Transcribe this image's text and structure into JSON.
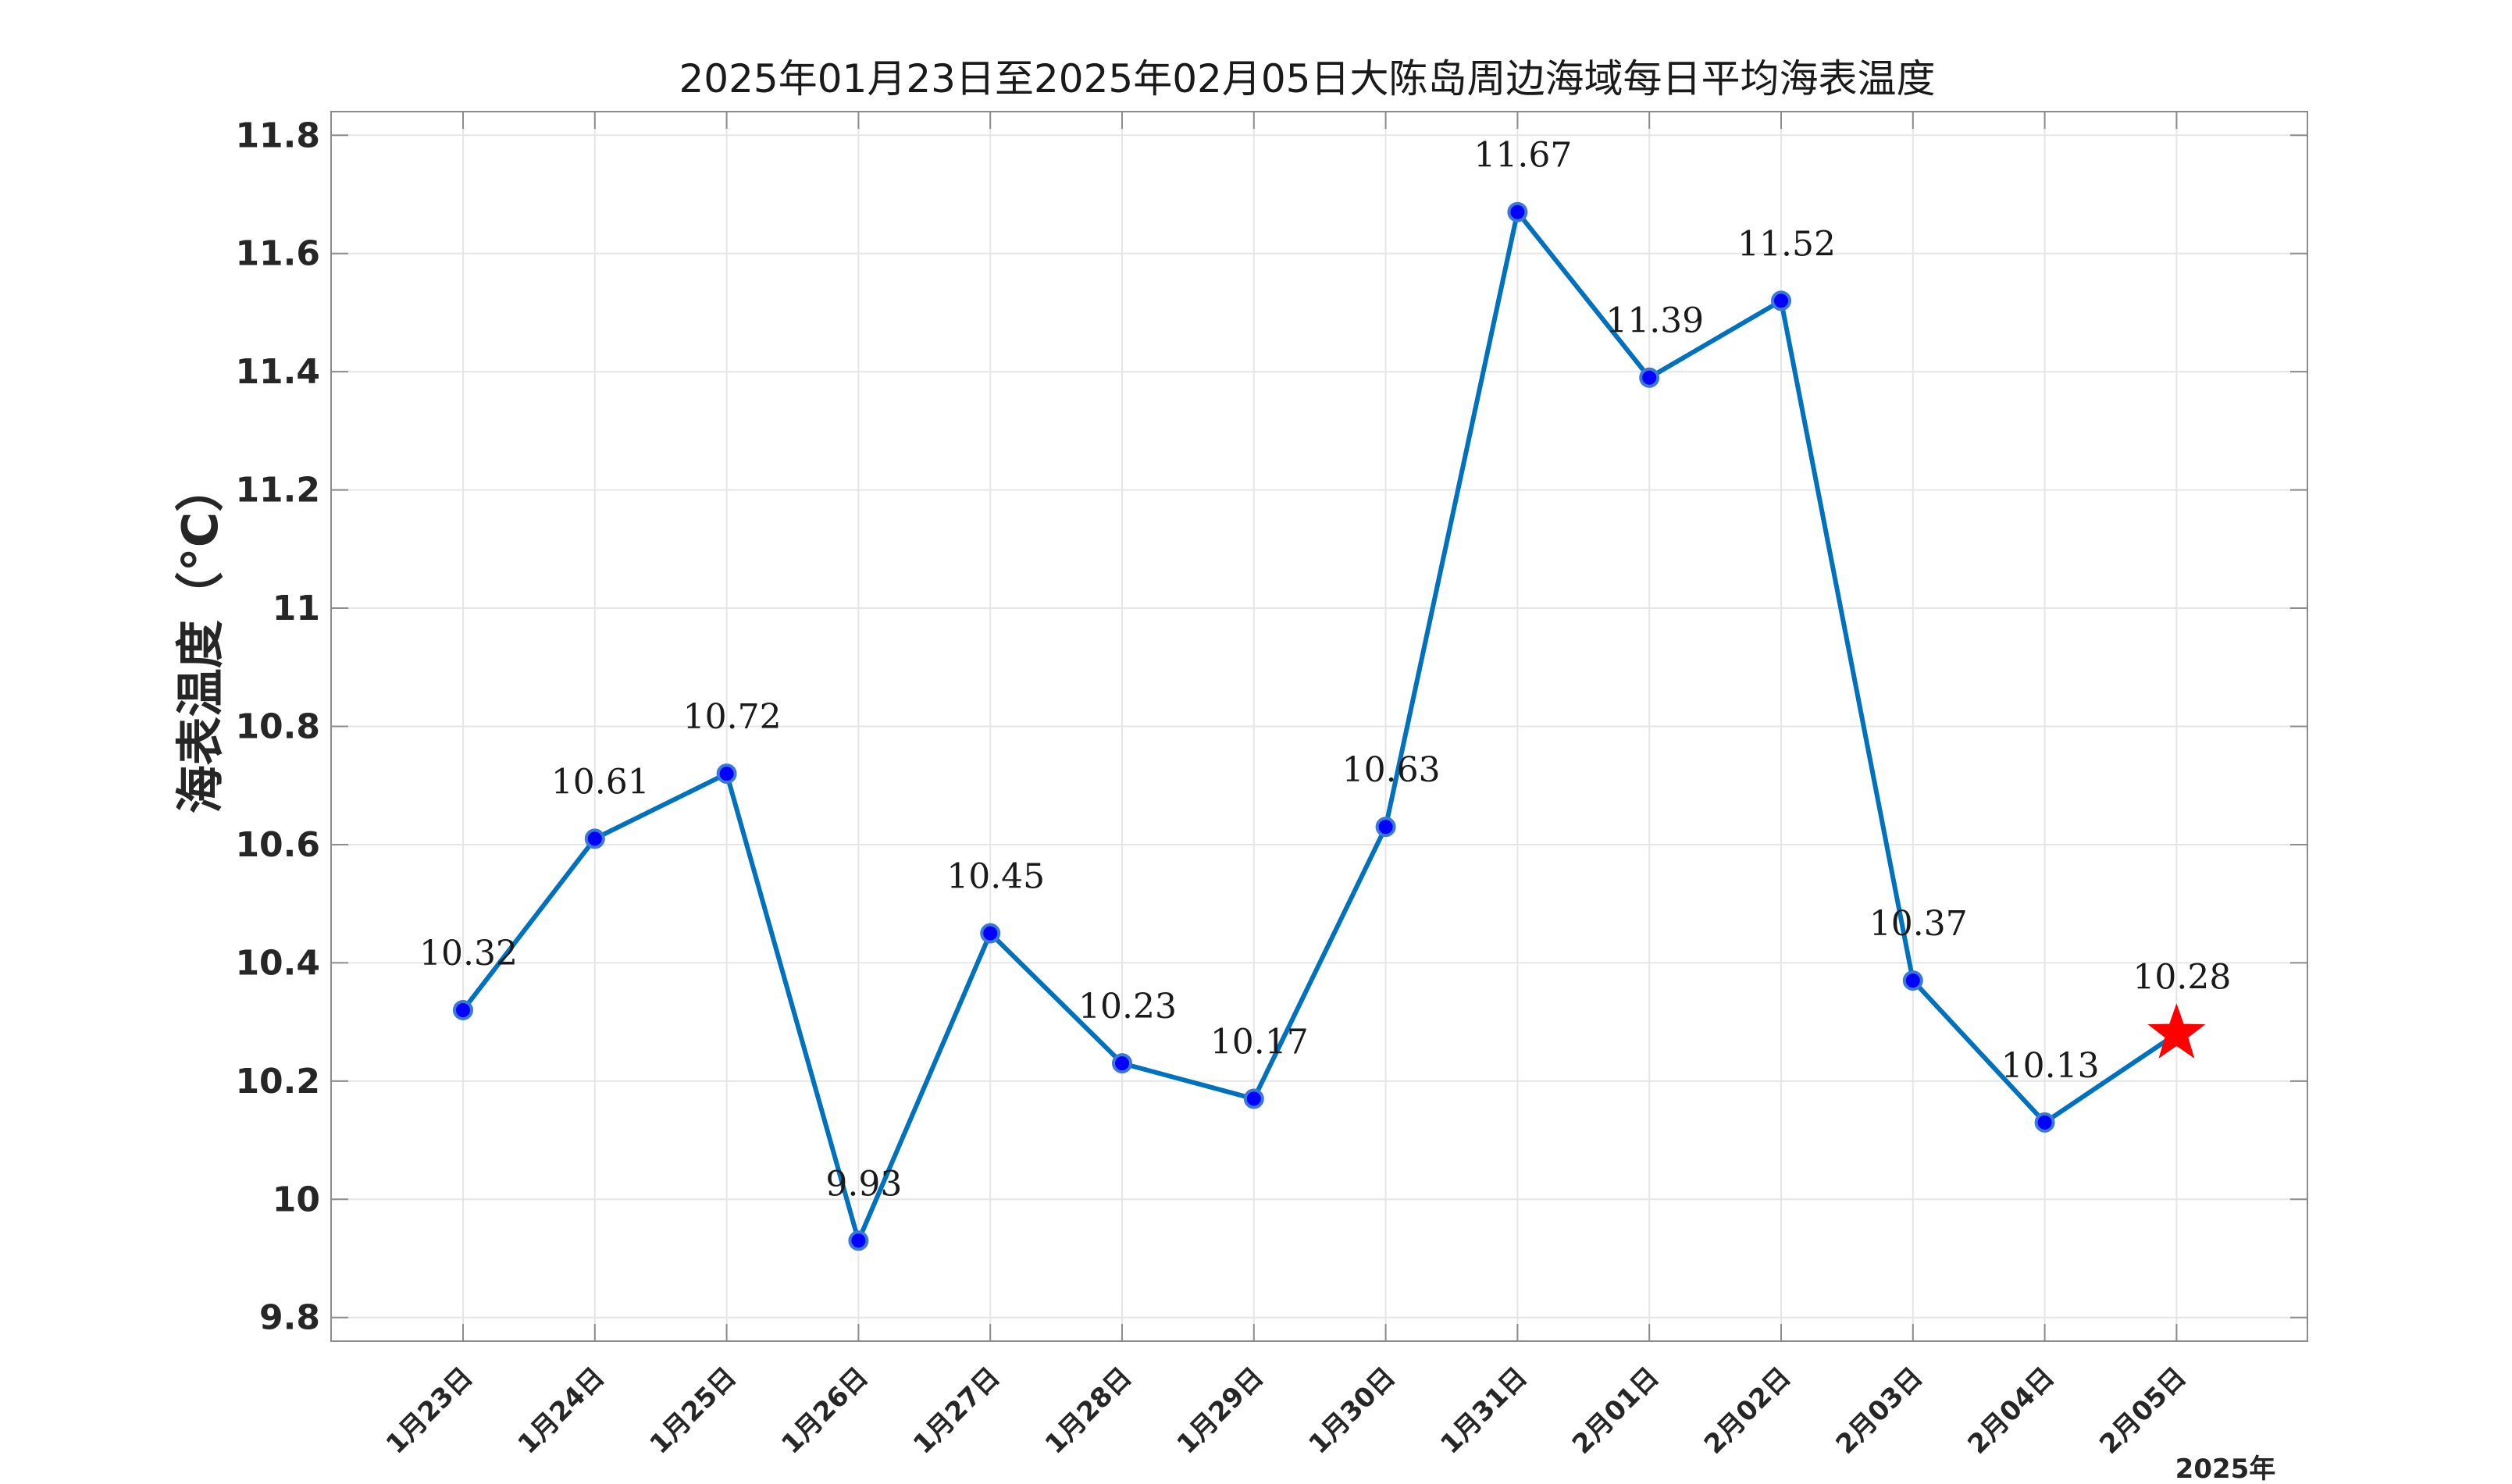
{
  "chart_data": {
    "type": "line",
    "title": "2025年01月23日至2025年02月05日大陈岛周边海域每日平均海表温度",
    "ylabel": "海表温度（°C）",
    "xlabel": "",
    "year_label": "2025年",
    "categories": [
      "1月23日",
      "1月24日",
      "1月25日",
      "1月26日",
      "1月27日",
      "1月28日",
      "1月29日",
      "1月30日",
      "1月31日",
      "2月01日",
      "2月02日",
      "2月03日",
      "2月04日",
      "2月05日"
    ],
    "values": [
      10.32,
      10.61,
      10.72,
      9.93,
      10.45,
      10.23,
      10.17,
      10.63,
      11.67,
      11.39,
      11.52,
      10.37,
      10.13,
      10.28
    ],
    "ylim": [
      9.76,
      11.84
    ],
    "yticks": [
      9.8,
      10,
      10.2,
      10.4,
      10.6,
      10.8,
      11,
      11.2,
      11.4,
      11.6,
      11.8
    ],
    "ytick_labels": [
      "9.8",
      "10",
      "10.2",
      "10.4",
      "10.6",
      "10.8",
      "11",
      "11.2",
      "11.4",
      "11.6",
      "11.8"
    ],
    "grid": true,
    "line_color": "#0072BD",
    "marker_color": "#0000FF",
    "marker_edge_color": "#3C78D8",
    "highlight_color": "#FF0000",
    "highlight_index": 13,
    "highlight_marker": "star"
  }
}
